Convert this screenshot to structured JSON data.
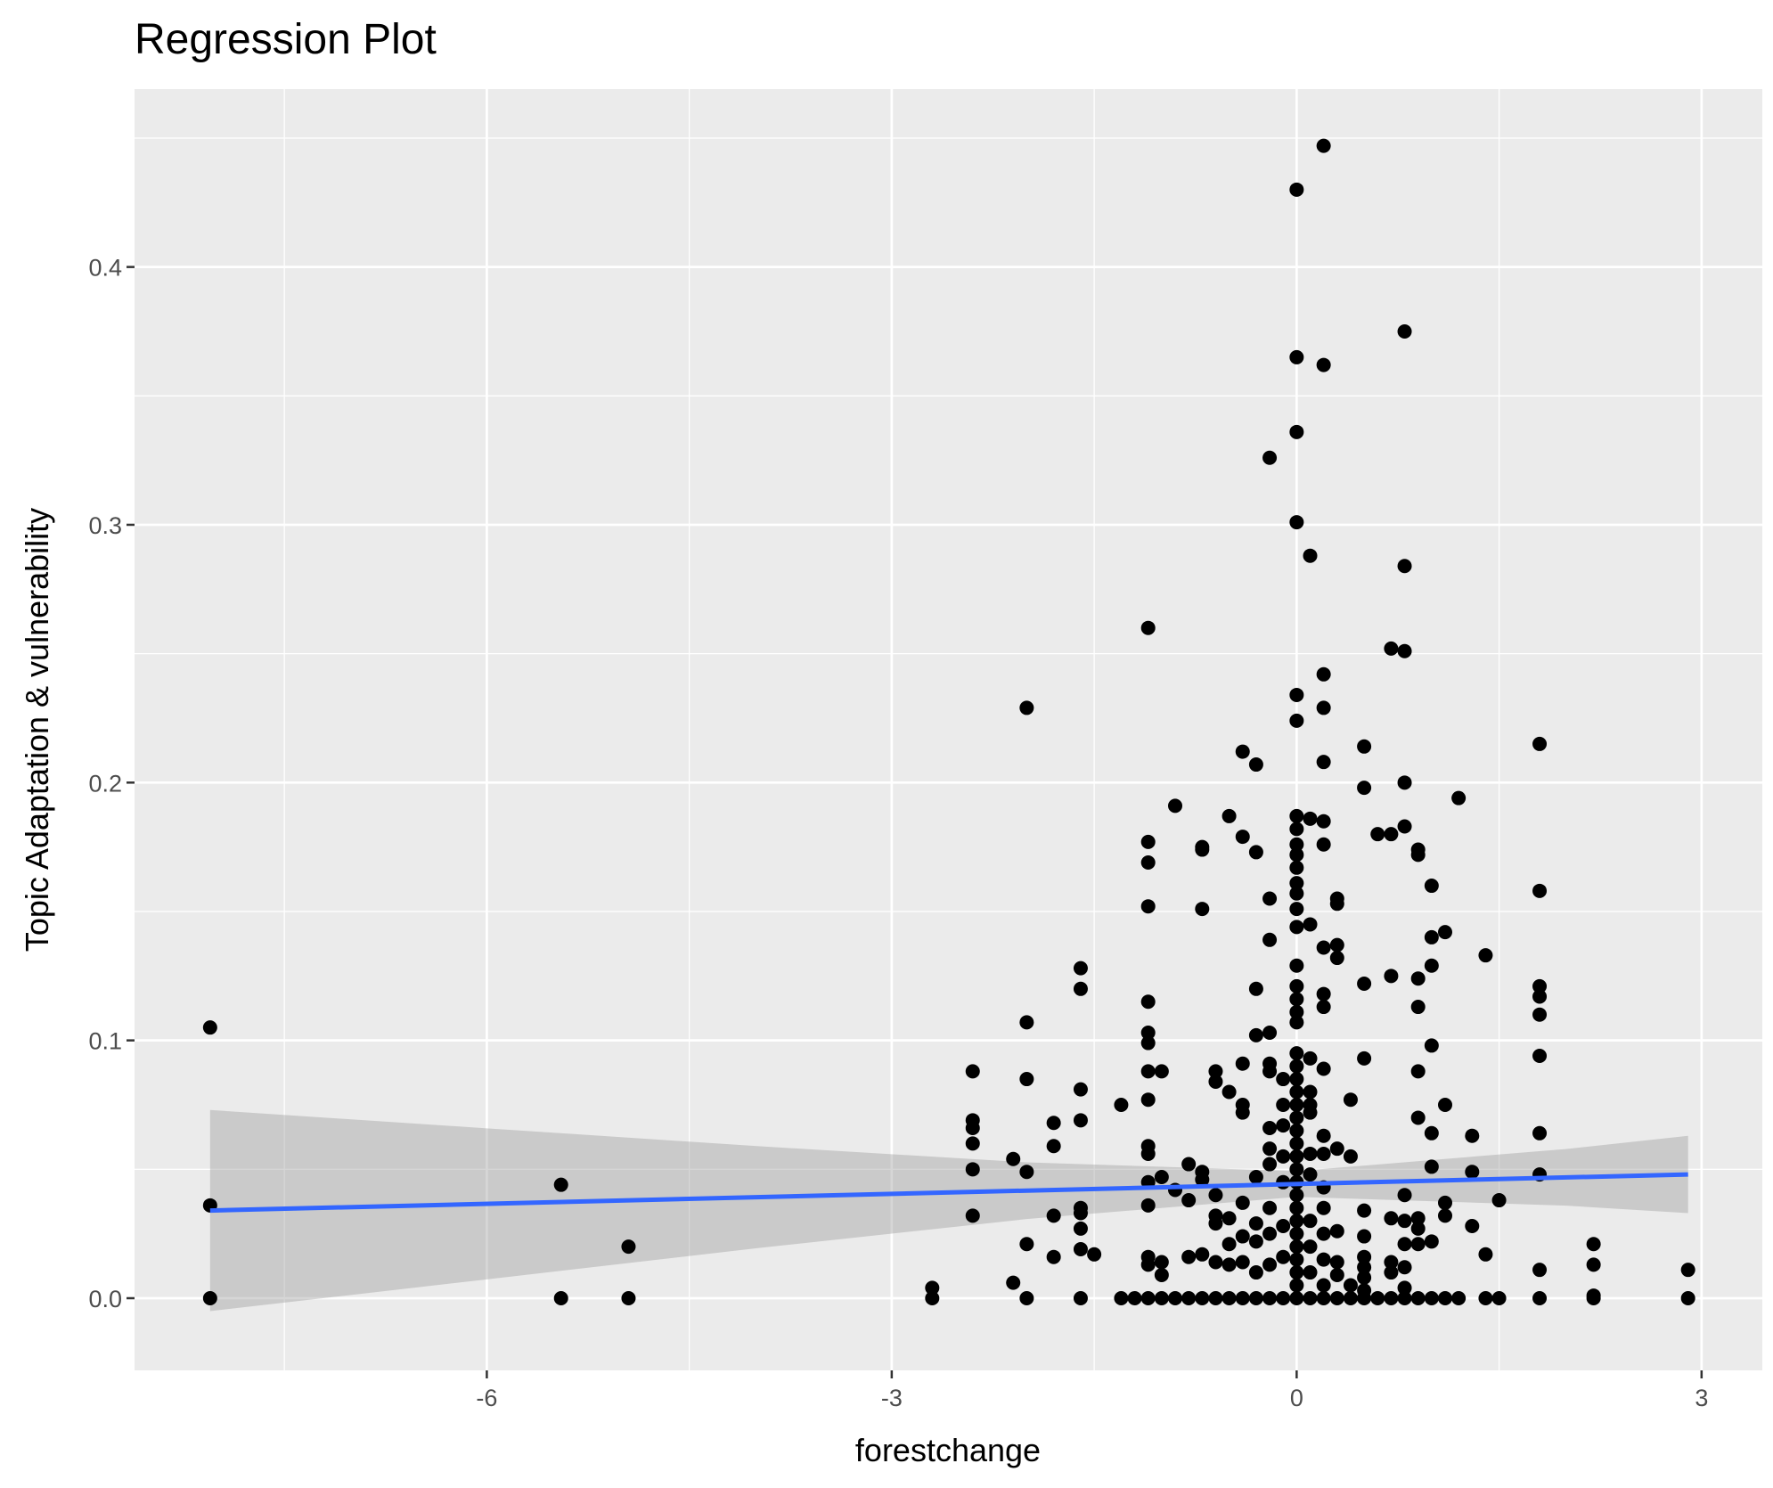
{
  "chart_data": {
    "type": "scatter",
    "title": "Regression Plot",
    "xlabel": "forestchange",
    "ylabel": "Topic Adaptation & vulnerability",
    "xlim": [
      -8.61,
      3.45
    ],
    "ylim": [
      -0.028,
      0.469
    ],
    "xticks": [
      -6,
      -3,
      0,
      3
    ],
    "xtick_labels": [
      "-6",
      "-3",
      "0",
      "3"
    ],
    "yticks": [
      0,
      0.1,
      0.2,
      0.3,
      0.4
    ],
    "ytick_labels": [
      "0.0",
      "0.1",
      "0.2",
      "0.3",
      "0.4"
    ],
    "grid": true,
    "legend": "none",
    "colors": {
      "panel": "#EBEBEB",
      "grid": "#FFFFFF",
      "point": "#000000",
      "line": "#3366FF",
      "ribbon": "#999999"
    },
    "regression": {
      "x": [
        -8.05,
        2.9
      ],
      "y": [
        0.034,
        0.048
      ]
    },
    "ci": {
      "x": [
        -8.05,
        -6,
        -4,
        -2,
        0,
        2,
        2.9
      ],
      "lower": [
        -0.005,
        0.0073,
        0.0194,
        0.0307,
        0.0393,
        0.0359,
        0.033
      ],
      "upper": [
        0.073,
        0.0659,
        0.059,
        0.0527,
        0.0493,
        0.0579,
        0.063
      ]
    },
    "points": [
      [
        -8.05,
        0.105
      ],
      [
        -8.05,
        0.036
      ],
      [
        -8.05,
        0
      ],
      [
        -5.45,
        0.044
      ],
      [
        -5.45,
        0
      ],
      [
        -4.95,
        0.02
      ],
      [
        -4.95,
        0
      ],
      [
        -2.7,
        0.004
      ],
      [
        -2.7,
        0
      ],
      [
        -2.4,
        0.088
      ],
      [
        -2.4,
        0.069
      ],
      [
        -2.4,
        0.066
      ],
      [
        -2.4,
        0.06
      ],
      [
        -2.4,
        0.05
      ],
      [
        -2.4,
        0.032
      ],
      [
        -2.1,
        0.054
      ],
      [
        -2.1,
        0.006
      ],
      [
        -2.0,
        0.229
      ],
      [
        -2.0,
        0.107
      ],
      [
        -2.0,
        0.085
      ],
      [
        -2.0,
        0.049
      ],
      [
        -2.0,
        0.021
      ],
      [
        -2.0,
        0
      ],
      [
        -1.8,
        0.068
      ],
      [
        -1.8,
        0.059
      ],
      [
        -1.8,
        0.032
      ],
      [
        -1.8,
        0.016
      ],
      [
        -1.6,
        0.128
      ],
      [
        -1.6,
        0.12
      ],
      [
        -1.6,
        0.081
      ],
      [
        -1.6,
        0.069
      ],
      [
        -1.6,
        0.035
      ],
      [
        -1.6,
        0.033
      ],
      [
        -1.6,
        0.027
      ],
      [
        -1.6,
        0.019
      ],
      [
        -1.6,
        0
      ],
      [
        -1.5,
        0.017
      ],
      [
        -1.3,
        0.075
      ],
      [
        -1.3,
        0
      ],
      [
        -1.2,
        0
      ],
      [
        -1.1,
        0.26
      ],
      [
        -1.1,
        0.177
      ],
      [
        -1.1,
        0.169
      ],
      [
        -1.1,
        0.152
      ],
      [
        -1.1,
        0.115
      ],
      [
        -1.1,
        0.103
      ],
      [
        -1.1,
        0.099
      ],
      [
        -1.1,
        0.088
      ],
      [
        -1.1,
        0.077
      ],
      [
        -1.1,
        0.059
      ],
      [
        -1.1,
        0.056
      ],
      [
        -1.1,
        0.045
      ],
      [
        -1.1,
        0.036
      ],
      [
        -1.1,
        0.016
      ],
      [
        -1.1,
        0.013
      ],
      [
        -1.1,
        0
      ],
      [
        -1.0,
        0.088
      ],
      [
        -1.0,
        0.047
      ],
      [
        -1.0,
        0.014
      ],
      [
        -1.0,
        0.009
      ],
      [
        -1.0,
        0
      ],
      [
        -0.9,
        0.191
      ],
      [
        -0.9,
        0.042
      ],
      [
        -0.9,
        0
      ],
      [
        -0.8,
        0.052
      ],
      [
        -0.8,
        0.038
      ],
      [
        -0.8,
        0.016
      ],
      [
        -0.8,
        0
      ],
      [
        -0.7,
        0.175
      ],
      [
        -0.7,
        0.174
      ],
      [
        -0.7,
        0.151
      ],
      [
        -0.7,
        0.049
      ],
      [
        -0.7,
        0.046
      ],
      [
        -0.7,
        0.017
      ],
      [
        -0.7,
        0
      ],
      [
        -0.6,
        0.088
      ],
      [
        -0.6,
        0.084
      ],
      [
        -0.6,
        0.04
      ],
      [
        -0.6,
        0.032
      ],
      [
        -0.6,
        0.029
      ],
      [
        -0.6,
        0.014
      ],
      [
        -0.6,
        0
      ],
      [
        -0.5,
        0.187
      ],
      [
        -0.5,
        0.08
      ],
      [
        -0.5,
        0.031
      ],
      [
        -0.5,
        0.021
      ],
      [
        -0.5,
        0.013
      ],
      [
        -0.5,
        0
      ],
      [
        -0.4,
        0.212
      ],
      [
        -0.4,
        0.179
      ],
      [
        -0.4,
        0.091
      ],
      [
        -0.4,
        0.075
      ],
      [
        -0.4,
        0.072
      ],
      [
        -0.4,
        0.037
      ],
      [
        -0.4,
        0.024
      ],
      [
        -0.4,
        0.014
      ],
      [
        -0.4,
        0
      ],
      [
        -0.3,
        0.207
      ],
      [
        -0.3,
        0.173
      ],
      [
        -0.3,
        0.12
      ],
      [
        -0.3,
        0.102
      ],
      [
        -0.3,
        0.047
      ],
      [
        -0.3,
        0.029
      ],
      [
        -0.3,
        0.022
      ],
      [
        -0.3,
        0.01
      ],
      [
        -0.3,
        0
      ],
      [
        -0.2,
        0.326
      ],
      [
        -0.2,
        0.155
      ],
      [
        -0.2,
        0.139
      ],
      [
        -0.2,
        0.103
      ],
      [
        -0.2,
        0.091
      ],
      [
        -0.2,
        0.088
      ],
      [
        -0.2,
        0.066
      ],
      [
        -0.2,
        0.058
      ],
      [
        -0.2,
        0.052
      ],
      [
        -0.2,
        0.035
      ],
      [
        -0.2,
        0.025
      ],
      [
        -0.2,
        0.013
      ],
      [
        -0.2,
        0
      ],
      [
        -0.1,
        0.085
      ],
      [
        -0.1,
        0.075
      ],
      [
        -0.1,
        0.067
      ],
      [
        -0.1,
        0.055
      ],
      [
        -0.1,
        0.045
      ],
      [
        -0.1,
        0.028
      ],
      [
        -0.1,
        0.016
      ],
      [
        -0.1,
        0
      ],
      [
        0,
        0.43
      ],
      [
        0,
        0.365
      ],
      [
        0,
        0.336
      ],
      [
        0,
        0.301
      ],
      [
        0,
        0.234
      ],
      [
        0,
        0.224
      ],
      [
        0,
        0.187
      ],
      [
        0,
        0.182
      ],
      [
        0,
        0.176
      ],
      [
        0,
        0.172
      ],
      [
        0,
        0.167
      ],
      [
        0,
        0.161
      ],
      [
        0,
        0.157
      ],
      [
        0,
        0.151
      ],
      [
        0,
        0.144
      ],
      [
        0,
        0.129
      ],
      [
        0,
        0.121
      ],
      [
        0,
        0.116
      ],
      [
        0,
        0.111
      ],
      [
        0,
        0.107
      ],
      [
        0,
        0.095
      ],
      [
        0,
        0.09
      ],
      [
        0,
        0.085
      ],
      [
        0,
        0.08
      ],
      [
        0,
        0.075
      ],
      [
        0,
        0.07
      ],
      [
        0,
        0.065
      ],
      [
        0,
        0.06
      ],
      [
        0,
        0.055
      ],
      [
        0,
        0.05
      ],
      [
        0,
        0.045
      ],
      [
        0,
        0.04
      ],
      [
        0,
        0.035
      ],
      [
        0,
        0.03
      ],
      [
        0,
        0.025
      ],
      [
        0,
        0.02
      ],
      [
        0,
        0.015
      ],
      [
        0,
        0.01
      ],
      [
        0,
        0.005
      ],
      [
        0,
        0
      ],
      [
        0.1,
        0.288
      ],
      [
        0.1,
        0.186
      ],
      [
        0.1,
        0.145
      ],
      [
        0.1,
        0.093
      ],
      [
        0.1,
        0.08
      ],
      [
        0.1,
        0.075
      ],
      [
        0.1,
        0.072
      ],
      [
        0.1,
        0.056
      ],
      [
        0.1,
        0.048
      ],
      [
        0.1,
        0.03
      ],
      [
        0.1,
        0.02
      ],
      [
        0.1,
        0.01
      ],
      [
        0.1,
        0
      ],
      [
        0.2,
        0.447
      ],
      [
        0.2,
        0.362
      ],
      [
        0.2,
        0.242
      ],
      [
        0.2,
        0.229
      ],
      [
        0.2,
        0.208
      ],
      [
        0.2,
        0.185
      ],
      [
        0.2,
        0.176
      ],
      [
        0.2,
        0.136
      ],
      [
        0.2,
        0.118
      ],
      [
        0.2,
        0.113
      ],
      [
        0.2,
        0.089
      ],
      [
        0.2,
        0.063
      ],
      [
        0.2,
        0.056
      ],
      [
        0.2,
        0.043
      ],
      [
        0.2,
        0.035
      ],
      [
        0.2,
        0.025
      ],
      [
        0.2,
        0.015
      ],
      [
        0.2,
        0.005
      ],
      [
        0.2,
        0
      ],
      [
        0.3,
        0.155
      ],
      [
        0.3,
        0.153
      ],
      [
        0.3,
        0.137
      ],
      [
        0.3,
        0.132
      ],
      [
        0.3,
        0.058
      ],
      [
        0.3,
        0.026
      ],
      [
        0.3,
        0.014
      ],
      [
        0.3,
        0.009
      ],
      [
        0.3,
        0
      ],
      [
        0.4,
        0.077
      ],
      [
        0.4,
        0.055
      ],
      [
        0.4,
        0.005
      ],
      [
        0.4,
        0
      ],
      [
        0.5,
        0.214
      ],
      [
        0.5,
        0.198
      ],
      [
        0.5,
        0.122
      ],
      [
        0.5,
        0.093
      ],
      [
        0.5,
        0.034
      ],
      [
        0.5,
        0.024
      ],
      [
        0.5,
        0.016
      ],
      [
        0.5,
        0.012
      ],
      [
        0.5,
        0.008
      ],
      [
        0.5,
        0.003
      ],
      [
        0.5,
        0
      ],
      [
        0.6,
        0.18
      ],
      [
        0.6,
        0
      ],
      [
        0.7,
        0.252
      ],
      [
        0.7,
        0.18
      ],
      [
        0.7,
        0.125
      ],
      [
        0.7,
        0.031
      ],
      [
        0.7,
        0.014
      ],
      [
        0.7,
        0.01
      ],
      [
        0.7,
        0
      ],
      [
        0.8,
        0.375
      ],
      [
        0.8,
        0.284
      ],
      [
        0.8,
        0.251
      ],
      [
        0.8,
        0.2
      ],
      [
        0.8,
        0.183
      ],
      [
        0.8,
        0.04
      ],
      [
        0.8,
        0.03
      ],
      [
        0.8,
        0.021
      ],
      [
        0.8,
        0.012
      ],
      [
        0.8,
        0.004
      ],
      [
        0.8,
        0
      ],
      [
        0.9,
        0.174
      ],
      [
        0.9,
        0.172
      ],
      [
        0.9,
        0.124
      ],
      [
        0.9,
        0.113
      ],
      [
        0.9,
        0.088
      ],
      [
        0.9,
        0.07
      ],
      [
        0.9,
        0.031
      ],
      [
        0.9,
        0.027
      ],
      [
        0.9,
        0.021
      ],
      [
        0.9,
        0
      ],
      [
        1.0,
        0.16
      ],
      [
        1.0,
        0.14
      ],
      [
        1.0,
        0.129
      ],
      [
        1.0,
        0.098
      ],
      [
        1.0,
        0.064
      ],
      [
        1.0,
        0.051
      ],
      [
        1.0,
        0.022
      ],
      [
        1.0,
        0
      ],
      [
        1.1,
        0.142
      ],
      [
        1.1,
        0.075
      ],
      [
        1.1,
        0.037
      ],
      [
        1.1,
        0.032
      ],
      [
        1.1,
        0
      ],
      [
        1.2,
        0.194
      ],
      [
        1.2,
        0
      ],
      [
        1.3,
        0.063
      ],
      [
        1.3,
        0.049
      ],
      [
        1.3,
        0.028
      ],
      [
        1.4,
        0.133
      ],
      [
        1.4,
        0.017
      ],
      [
        1.4,
        0
      ],
      [
        1.5,
        0.038
      ],
      [
        1.5,
        0
      ],
      [
        1.8,
        0.215
      ],
      [
        1.8,
        0.158
      ],
      [
        1.8,
        0.121
      ],
      [
        1.8,
        0.117
      ],
      [
        1.8,
        0.11
      ],
      [
        1.8,
        0.094
      ],
      [
        1.8,
        0.064
      ],
      [
        1.8,
        0.048
      ],
      [
        1.8,
        0.011
      ],
      [
        1.8,
        0
      ],
      [
        2.2,
        0.021
      ],
      [
        2.2,
        0.013
      ],
      [
        2.2,
        0.001
      ],
      [
        2.2,
        0
      ],
      [
        2.9,
        0.011
      ],
      [
        2.9,
        0
      ]
    ]
  }
}
